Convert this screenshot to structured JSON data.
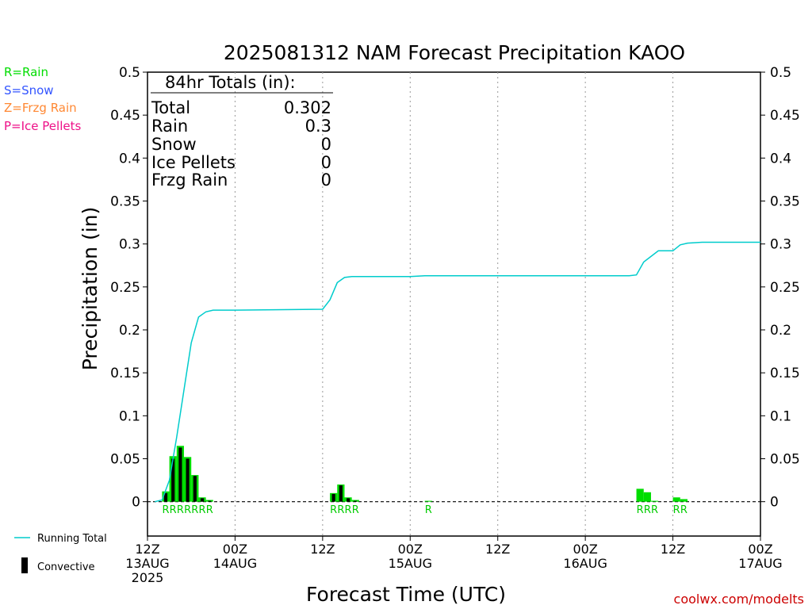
{
  "chart_data": {
    "type": "bar",
    "title": "2025081312 NAM Forecast Precipitation KAOO",
    "xlabel": "Forecast Time (UTC)",
    "ylabel": "Precipitation (in)",
    "ylim": [
      -0.04,
      0.5
    ],
    "y_ticks": [
      0,
      0.05,
      0.1,
      0.15,
      0.2,
      0.25,
      0.3,
      0.35,
      0.4,
      0.45,
      0.5
    ],
    "y_tick_labels": [
      "0",
      "0.05",
      "0.1",
      "0.15",
      "0.2",
      "0.25",
      "0.3",
      "0.35",
      "0.4",
      "0.45",
      "0.5"
    ],
    "xlim_hours": [
      0,
      84
    ],
    "x_ticks": [
      {
        "hour": 0,
        "lines": [
          "12Z",
          "13AUG",
          "2025"
        ]
      },
      {
        "hour": 12,
        "lines": [
          "00Z",
          "14AUG"
        ]
      },
      {
        "hour": 24,
        "lines": [
          "12Z"
        ]
      },
      {
        "hour": 36,
        "lines": [
          "00Z",
          "15AUG"
        ]
      },
      {
        "hour": 48,
        "lines": [
          "12Z"
        ]
      },
      {
        "hour": 60,
        "lines": [
          "00Z",
          "16AUG"
        ]
      },
      {
        "hour": 72,
        "lines": [
          "12Z"
        ]
      },
      {
        "hour": 84,
        "lines": [
          "00Z",
          "17AUG"
        ]
      }
    ],
    "grid_hours": [
      12,
      24,
      36,
      48,
      60,
      72
    ],
    "grid": "vertical dotted",
    "bar_width_hours": 0.6,
    "precip_bars": [
      {
        "hour": 2.5,
        "total": 0.012,
        "convective": 0.01,
        "type": "R"
      },
      {
        "hour": 3.5,
        "total": 0.053,
        "convective": 0.05,
        "type": "R"
      },
      {
        "hour": 4.5,
        "total": 0.065,
        "convective": 0.063,
        "type": "R"
      },
      {
        "hour": 5.5,
        "total": 0.052,
        "convective": 0.05,
        "type": "R"
      },
      {
        "hour": 6.5,
        "total": 0.031,
        "convective": 0.03,
        "type": "R"
      },
      {
        "hour": 7.5,
        "total": 0.005,
        "convective": 0.004,
        "type": "R"
      },
      {
        "hour": 8.5,
        "total": 0.002,
        "convective": 0.001,
        "type": "R"
      },
      {
        "hour": 25.5,
        "total": 0.01,
        "convective": 0.009,
        "type": "R"
      },
      {
        "hour": 26.5,
        "total": 0.02,
        "convective": 0.019,
        "type": "R"
      },
      {
        "hour": 27.5,
        "total": 0.005,
        "convective": 0.004,
        "type": "R"
      },
      {
        "hour": 28.5,
        "total": 0.002,
        "convective": 0.001,
        "type": "R"
      },
      {
        "hour": 38.5,
        "total": 0.001,
        "convective": 0.0,
        "type": "R"
      },
      {
        "hour": 67.5,
        "total": 0.015,
        "convective": 0.0,
        "type": "R"
      },
      {
        "hour": 68.5,
        "total": 0.011,
        "convective": 0.0,
        "type": "R"
      },
      {
        "hour": 69.5,
        "total": 0.001,
        "convective": 0.0,
        "type": "R"
      },
      {
        "hour": 72.5,
        "total": 0.005,
        "convective": 0.0,
        "type": "R"
      },
      {
        "hour": 73.5,
        "total": 0.003,
        "convective": 0.0,
        "type": "R"
      }
    ],
    "running_total": {
      "name": "Running Total",
      "color": "#00cccc",
      "x": [
        1,
        2,
        3,
        4,
        5,
        6,
        7,
        8,
        9,
        10,
        12,
        24,
        25,
        26,
        27,
        28,
        30,
        36,
        38,
        40,
        48,
        60,
        66,
        67,
        68,
        70,
        72,
        73,
        74,
        76,
        84
      ],
      "y": [
        0.0,
        0.002,
        0.025,
        0.075,
        0.13,
        0.185,
        0.215,
        0.221,
        0.223,
        0.223,
        0.223,
        0.224,
        0.235,
        0.255,
        0.261,
        0.262,
        0.262,
        0.262,
        0.263,
        0.263,
        0.263,
        0.263,
        0.263,
        0.264,
        0.279,
        0.292,
        0.292,
        0.299,
        0.301,
        0.302,
        0.302
      ]
    }
  },
  "colors": {
    "rain": "#00dd00",
    "snow": "#3355ff",
    "frzg_rain": "#ff8833",
    "ice_pellets": "#ee1188",
    "convective": "#000000",
    "running_total": "#00cccc",
    "watermark": "#cc0000"
  },
  "legend_types": [
    {
      "label": "R=Rain",
      "color": "#00dd00"
    },
    {
      "label": "S=Snow",
      "color": "#3355ff"
    },
    {
      "label": "Z=Frzg Rain",
      "color": "#ff8833"
    },
    {
      "label": "P=Ice Pellets",
      "color": "#ee1188"
    }
  ],
  "totals_box": {
    "header": "84hr Totals (in):",
    "rows": [
      {
        "label": "Total",
        "value": "0.302"
      },
      {
        "label": "Rain",
        "value": "0.3"
      },
      {
        "label": "Snow",
        "value": "0"
      },
      {
        "label": "Ice Pellets",
        "value": "0"
      },
      {
        "label": "Frzg Rain",
        "value": "0"
      }
    ]
  },
  "bottom_legend": {
    "running_total": "Running Total",
    "convective": "Convective"
  },
  "watermark": "coolwx.com/modelts"
}
